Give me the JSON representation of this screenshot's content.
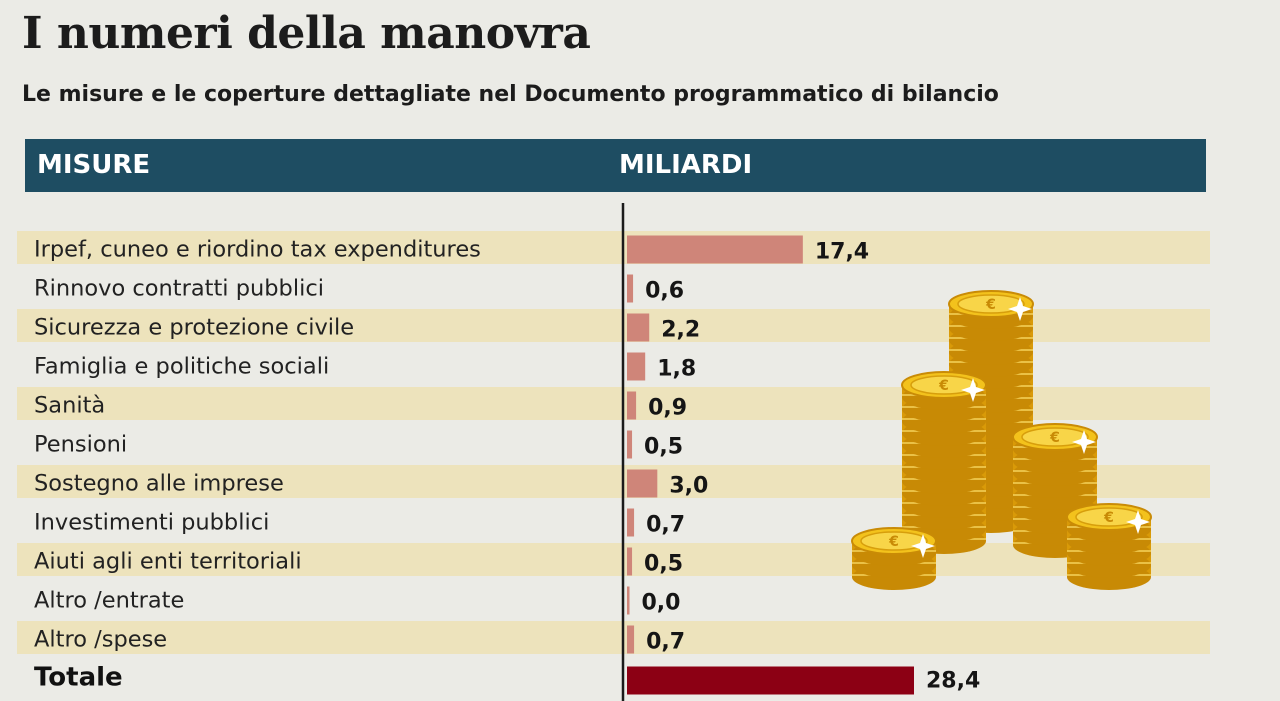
{
  "title": "I numeri della manovra",
  "subtitle": "Le misure e le coperture dettagliate nel Documento programmatico di bilancio",
  "header": {
    "col1": "MISURE",
    "col2": "MILIARDI"
  },
  "colors": {
    "header_bg": "#1e4d62",
    "stripe": "#ede3bc",
    "bar": "#cf8579",
    "total_bar": "#8c0014",
    "background": "#ebebe6"
  },
  "decoration": "euro-coins-icon",
  "chart_data": {
    "type": "bar",
    "orientation": "horizontal",
    "xlabel": "MILIARDI",
    "categories": [
      "Irpef, cuneo e riordino tax expenditures",
      "Rinnovo contratti pubblici",
      "Sicurezza e protezione civile",
      "Famiglia e politiche sociali",
      "Sanità",
      "Pensioni",
      "Sostegno alle imprese",
      "Investimenti pubblici",
      "Aiuti agli enti territoriali",
      "Altro /entrate",
      "Altro /spese",
      "Totale"
    ],
    "values": [
      17.4,
      0.6,
      2.2,
      1.8,
      0.9,
      0.5,
      3.0,
      0.7,
      0.5,
      0.0,
      0.7,
      28.4
    ],
    "value_labels": [
      "17,4",
      "0,6",
      "2,2",
      "1,8",
      "0,9",
      "0,5",
      "3,0",
      "0,7",
      "0,5",
      "0,0",
      "0,7",
      "28,4"
    ],
    "xlim": [
      0,
      28.4
    ],
    "grid": false,
    "legend": "none"
  }
}
